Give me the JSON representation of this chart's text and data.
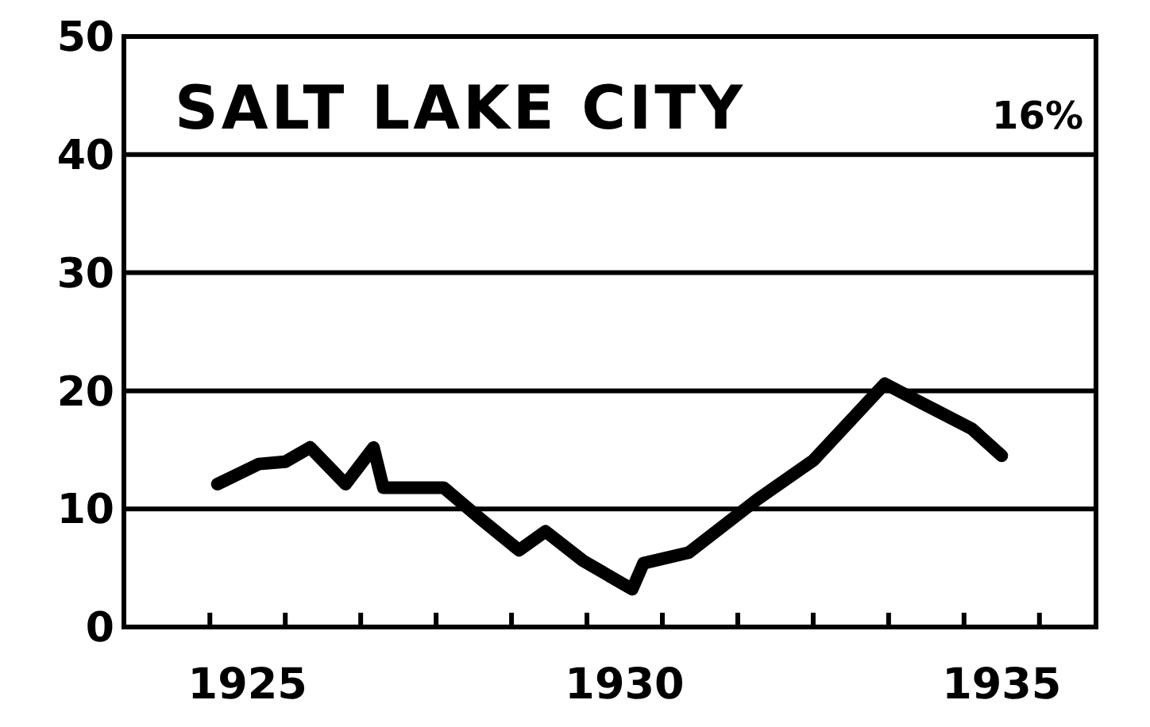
{
  "chart_data": {
    "type": "line",
    "title": "SALT LAKE CITY",
    "annotations": [
      "16%"
    ],
    "x": [
      1925.1,
      1925.65,
      1926.0,
      1926.33,
      1926.8,
      1927.17,
      1927.3,
      1928.1,
      1928.6,
      1929.1,
      1929.45,
      1929.95,
      1930.6,
      1930.75,
      1931.35,
      1932.26,
      1933.0,
      1933.95,
      1934.4,
      1935.1,
      1935.5
    ],
    "series": [
      {
        "color": "#000000",
        "values": [
          12.1,
          13.8,
          14.0,
          15.2,
          12.1,
          15.2,
          11.8,
          11.8,
          9.1,
          6.5,
          8.1,
          5.6,
          3.2,
          5.4,
          6.3,
          10.8,
          14.1,
          20.6,
          19.1,
          16.8,
          14.5
        ]
      }
    ],
    "xlim": [
      1923.86,
      1936.75
    ],
    "xticks": [
      {
        "value": 1925,
        "label": null
      },
      {
        "value": 1925.5,
        "label": "1925"
      },
      {
        "value": 1926,
        "label": null
      },
      {
        "value": 1927,
        "label": null
      },
      {
        "value": 1928,
        "label": null
      },
      {
        "value": 1929,
        "label": null
      },
      {
        "value": 1930,
        "label": null
      },
      {
        "value": 1930.5,
        "label": "1930"
      },
      {
        "value": 1931,
        "label": null
      },
      {
        "value": 1932,
        "label": null
      },
      {
        "value": 1933,
        "label": null
      },
      {
        "value": 1934,
        "label": null
      },
      {
        "value": 1935,
        "label": null
      },
      {
        "value": 1935.5,
        "label": "1935"
      },
      {
        "value": 1936,
        "label": null
      }
    ],
    "ylim": [
      0,
      50
    ],
    "yticks": [
      0,
      10,
      20,
      30,
      40,
      50
    ],
    "grid": "y",
    "marker": "none",
    "line_style": "solid"
  }
}
